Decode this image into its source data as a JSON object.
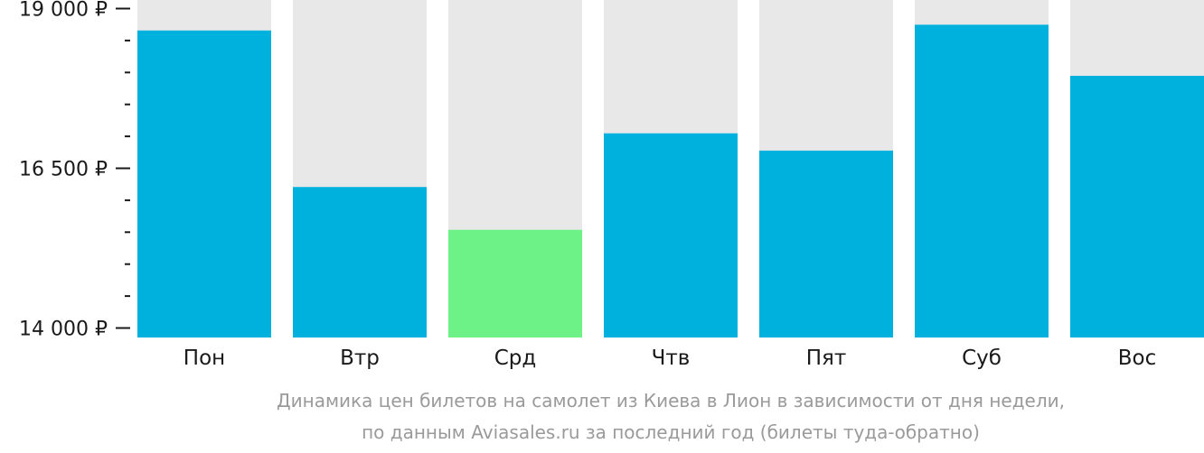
{
  "chart_data": {
    "type": "bar",
    "categories": [
      "Пон",
      "Втр",
      "Срд",
      "Чтв",
      "Пят",
      "Суб",
      "Вос"
    ],
    "values": [
      18650,
      16200,
      15530,
      17040,
      16770,
      18740,
      17940
    ],
    "ylim": [
      14000,
      19000
    ],
    "y_ticks": [
      {
        "value": 19000,
        "label": "19 000 ₽"
      },
      {
        "value": 16500,
        "label": "16 500 ₽"
      },
      {
        "value": 14000,
        "label": "14 000 ₽"
      }
    ],
    "y_minor_step": 500,
    "highlight_category": "Срд",
    "colors": {
      "bar": "#00b0dd",
      "highlight": "#6df287",
      "background_column": "#e8e8e8",
      "axis": "#1a1a1a",
      "caption": "#9a9a9a"
    },
    "caption": [
      "Динамика цен билетов на самолет из Киева в Лион в зависимости от дня недели,",
      "по данным Aviasales.ru за последний год (билеты туда-обратно)"
    ]
  }
}
